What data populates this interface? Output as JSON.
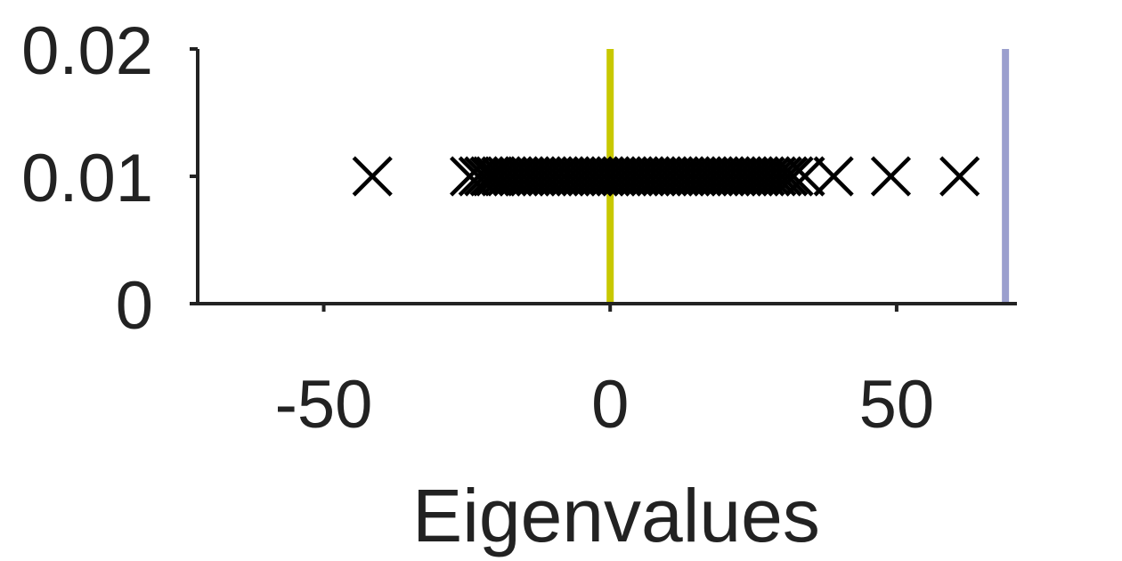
{
  "chart_data": {
    "type": "scatter",
    "title": "",
    "xlabel": "Eigenvalues",
    "ylabel": "",
    "xlim": [
      -72,
      71
    ],
    "ylim": [
      0,
      0.02
    ],
    "x_ticks": [
      {
        "value": -50,
        "label": "-50"
      },
      {
        "value": 0,
        "label": "0"
      },
      {
        "value": 50,
        "label": "50"
      }
    ],
    "y_ticks": [
      {
        "value": 0,
        "label": "0"
      },
      {
        "value": 0.01,
        "label": "0.01"
      },
      {
        "value": 0.02,
        "label": "0.02"
      }
    ],
    "grid": false,
    "legend": "none",
    "marker": "x",
    "marker_color": "#000000",
    "y_value": 0.01,
    "x": [
      -41.5,
      -24.5,
      -23,
      -22,
      -21,
      -20.5,
      -20,
      -19,
      -18,
      -17,
      -16,
      -15,
      -14,
      -13,
      -12,
      -11,
      -10,
      -9,
      -8,
      -7,
      -6,
      -5,
      -4,
      -3,
      -2,
      -1,
      0,
      1,
      2,
      3,
      4,
      5,
      6,
      7,
      8,
      9,
      10,
      11,
      12,
      13,
      14,
      15,
      16,
      17,
      18,
      19,
      20,
      21,
      22,
      23,
      24,
      25,
      26,
      27,
      28,
      29,
      30,
      31,
      32,
      34,
      39,
      49,
      61
    ],
    "reference_lines": [
      {
        "x": 0,
        "color": "#c8c800"
      },
      {
        "x": 69,
        "color": "#9b9fce"
      }
    ]
  }
}
